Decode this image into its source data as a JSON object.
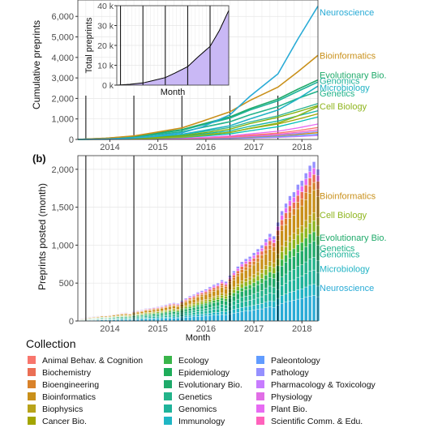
{
  "chart_data": [
    {
      "type": "line",
      "panel_label": "",
      "ylabel": "Cumulative preprints",
      "xlabel": "",
      "x_tick_labels": [
        "2014",
        "2015",
        "2016",
        "2017",
        "2018"
      ],
      "xlim": [
        "2013-11",
        "2018-11"
      ],
      "ylim": [
        0,
        6800
      ],
      "y_ticks": [
        0,
        1000,
        2000,
        3000,
        4000,
        5000,
        6000
      ],
      "y_tick_labels": [
        "0",
        "1,000",
        "2,000",
        "3,000",
        "4,000",
        "5,000",
        "6,000"
      ],
      "year_boundaries": [
        "2014-01",
        "2015-01",
        "2016-01",
        "2017-01",
        "2018-01"
      ],
      "grid": true,
      "series": [
        {
          "name": "Neuroscience",
          "color": "#29abd6",
          "x": [
            "2013-11",
            "2014-06",
            "2015-01",
            "2015-06",
            "2016-01",
            "2016-06",
            "2017-01",
            "2017-06",
            "2018-01",
            "2018-06",
            "2018-11"
          ],
          "y": [
            0,
            20,
            70,
            160,
            320,
            600,
            1200,
            2100,
            3200,
            4900,
            6500
          ]
        },
        {
          "name": "Bioinformatics",
          "color": "#c9901a",
          "x": [
            "2013-11",
            "2014-06",
            "2015-01",
            "2015-06",
            "2016-01",
            "2016-06",
            "2017-01",
            "2017-06",
            "2018-01",
            "2018-06",
            "2018-11"
          ],
          "y": [
            0,
            60,
            170,
            330,
            560,
            880,
            1350,
            1900,
            2550,
            3300,
            4100
          ]
        },
        {
          "name": "Evolutionary Bio.",
          "color": "#1faa6a",
          "x": [
            "2013-11",
            "2014-06",
            "2015-01",
            "2015-06",
            "2016-01",
            "2016-06",
            "2017-01",
            "2017-06",
            "2018-01",
            "2018-06",
            "2018-11"
          ],
          "y": [
            0,
            55,
            150,
            290,
            480,
            740,
            1100,
            1500,
            1970,
            2450,
            2900
          ]
        },
        {
          "name": "Genomics",
          "color": "#1fb39a",
          "x": [
            "2013-11",
            "2014-06",
            "2015-01",
            "2015-06",
            "2016-01",
            "2016-06",
            "2017-01",
            "2017-06",
            "2018-01",
            "2018-06",
            "2018-11"
          ],
          "y": [
            0,
            50,
            140,
            270,
            450,
            700,
            1040,
            1430,
            1880,
            2350,
            2800
          ]
        },
        {
          "name": "Microbiology",
          "color": "#21b3c4",
          "x": [
            "2013-11",
            "2014-06",
            "2015-01",
            "2015-06",
            "2016-01",
            "2016-06",
            "2017-01",
            "2017-06",
            "2018-01",
            "2018-06",
            "2018-11"
          ],
          "y": [
            0,
            25,
            70,
            140,
            250,
            420,
            670,
            1000,
            1430,
            1980,
            2600
          ]
        },
        {
          "name": "Genetics",
          "color": "#23b38a",
          "x": [
            "2013-11",
            "2014-06",
            "2015-01",
            "2015-06",
            "2016-01",
            "2016-06",
            "2017-01",
            "2017-06",
            "2018-01",
            "2018-06",
            "2018-11"
          ],
          "y": [
            0,
            40,
            110,
            220,
            370,
            580,
            860,
            1200,
            1600,
            2000,
            2350
          ]
        },
        {
          "name": "Cell Biology",
          "color": "#8fb51f",
          "x": [
            "2013-11",
            "2014-06",
            "2015-01",
            "2015-06",
            "2016-01",
            "2016-06",
            "2017-01",
            "2017-06",
            "2018-01",
            "2018-06",
            "2018-11"
          ],
          "y": [
            0,
            8,
            25,
            55,
            110,
            200,
            340,
            540,
            800,
            1150,
            1600
          ]
        },
        {
          "name": "",
          "color": "#7cae00",
          "x": [
            "2013-11",
            "2014-06",
            "2015-01",
            "2015-06",
            "2016-01",
            "2016-06",
            "2017-01",
            "2017-06",
            "2018-01",
            "2018-06",
            "2018-11"
          ],
          "y": [
            0,
            15,
            45,
            95,
            180,
            310,
            500,
            770,
            1080,
            1350,
            1650
          ]
        },
        {
          "name": "",
          "color": "#2bb390",
          "x": [
            "2013-11",
            "2014-06",
            "2015-01",
            "2015-06",
            "2016-01",
            "2016-06",
            "2017-01",
            "2017-06",
            "2018-01",
            "2018-06",
            "2018-11"
          ],
          "y": [
            0,
            20,
            60,
            120,
            220,
            370,
            580,
            850,
            1150,
            1450,
            1750
          ]
        },
        {
          "name": "",
          "color": "#13b6a8",
          "x": [
            "2013-11",
            "2014-06",
            "2015-01",
            "2015-06",
            "2016-01",
            "2016-06",
            "2017-01",
            "2017-06",
            "2018-01",
            "2018-06",
            "2018-11"
          ],
          "y": [
            0,
            10,
            35,
            80,
            150,
            260,
            420,
            640,
            900,
            1150,
            1400
          ]
        },
        {
          "name": "",
          "color": "#a3a500",
          "x": [
            "2013-11",
            "2014-06",
            "2015-01",
            "2015-06",
            "2016-01",
            "2016-06",
            "2017-01",
            "2017-06",
            "2018-01",
            "2018-06",
            "2018-11"
          ],
          "y": [
            0,
            12,
            35,
            70,
            130,
            220,
            350,
            530,
            750,
            990,
            1250
          ]
        },
        {
          "name": "",
          "color": "#00c0b8",
          "x": [
            "2013-11",
            "2014-06",
            "2015-01",
            "2015-06",
            "2016-01",
            "2016-06",
            "2017-01",
            "2017-06",
            "2018-01",
            "2018-06",
            "2018-11"
          ],
          "y": [
            0,
            6,
            20,
            45,
            90,
            160,
            270,
            420,
            620,
            850,
            1100
          ]
        },
        {
          "name": "",
          "color": "#e76bf3",
          "x": [
            "2013-11",
            "2014-06",
            "2015-01",
            "2015-06",
            "2016-01",
            "2016-06",
            "2017-01",
            "2017-06",
            "2018-01",
            "2018-06",
            "2018-11"
          ],
          "y": [
            0,
            4,
            12,
            28,
            55,
            100,
            170,
            270,
            400,
            560,
            750
          ]
        },
        {
          "name": "",
          "color": "#f8766d",
          "x": [
            "2013-11",
            "2014-06",
            "2015-01",
            "2015-06",
            "2016-01",
            "2016-06",
            "2017-01",
            "2017-06",
            "2018-01",
            "2018-06",
            "2018-11"
          ],
          "y": [
            0,
            3,
            10,
            22,
            45,
            80,
            135,
            210,
            310,
            430,
            580
          ]
        },
        {
          "name": "",
          "color": "#ff62bc",
          "x": [
            "2013-11",
            "2014-06",
            "2015-01",
            "2015-06",
            "2016-01",
            "2016-06",
            "2017-01",
            "2017-06",
            "2018-01",
            "2018-06",
            "2018-11"
          ],
          "y": [
            0,
            3,
            9,
            20,
            38,
            65,
            110,
            170,
            250,
            350,
            470
          ]
        },
        {
          "name": "",
          "color": "#9590ff",
          "x": [
            "2013-11",
            "2014-06",
            "2015-01",
            "2015-06",
            "2016-01",
            "2016-06",
            "2017-01",
            "2017-06",
            "2018-01",
            "2018-06",
            "2018-11"
          ],
          "y": [
            0,
            2,
            7,
            15,
            30,
            52,
            88,
            140,
            210,
            290,
            390
          ]
        },
        {
          "name": "",
          "color": "#d89000",
          "x": [
            "2013-11",
            "2014-06",
            "2015-01",
            "2015-06",
            "2016-01",
            "2016-06",
            "2017-01",
            "2017-06",
            "2018-01",
            "2018-06",
            "2018-11"
          ],
          "y": [
            0,
            2,
            6,
            13,
            25,
            45,
            75,
            120,
            180,
            250,
            330
          ]
        },
        {
          "name": "",
          "color": "#619cff",
          "x": [
            "2013-11",
            "2014-06",
            "2015-01",
            "2015-06",
            "2016-01",
            "2016-06",
            "2017-01",
            "2017-06",
            "2018-01",
            "2018-06",
            "2018-11"
          ],
          "y": [
            0,
            1,
            4,
            9,
            18,
            32,
            55,
            90,
            135,
            190,
            250
          ]
        },
        {
          "name": "",
          "color": "#c77cff",
          "x": [
            "2013-11",
            "2014-06",
            "2015-01",
            "2015-06",
            "2016-01",
            "2016-06",
            "2017-01",
            "2017-06",
            "2018-01",
            "2018-06",
            "2018-11"
          ],
          "y": [
            0,
            1,
            3,
            7,
            14,
            25,
            42,
            68,
            100,
            140,
            190
          ]
        }
      ],
      "labels": [
        {
          "text": "Neuroscience",
          "y": 6200,
          "color": "#29abd6"
        },
        {
          "text": "Bioinformatics",
          "y": 4100,
          "color": "#c9901a"
        },
        {
          "text": "Evolutionary Bio.",
          "y": 3150,
          "color": "#1faa6a"
        },
        {
          "text": "Genomics",
          "y": 2860,
          "color": "#1fb39a"
        },
        {
          "text": "Microbiology",
          "y": 2540,
          "color": "#21b3c4"
        },
        {
          "text": "Genetics",
          "y": 2250,
          "color": "#23b38a"
        },
        {
          "text": "Cell Biology",
          "y": 1620,
          "color": "#8fb51f"
        }
      ]
    },
    {
      "type": "area",
      "role": "inset",
      "ylabel": "Total preprints",
      "xlabel": "Month",
      "ylim": [
        0,
        40000
      ],
      "y_ticks": [
        0,
        10000,
        20000,
        30000,
        40000
      ],
      "y_tick_labels": [
        "0 k",
        "10 k",
        "20 k",
        "30 k",
        "40 k"
      ],
      "xlim": [
        "2013-11",
        "2018-11"
      ],
      "year_boundaries": [
        "2014-01",
        "2015-01",
        "2016-01",
        "2017-01",
        "2018-01"
      ],
      "fill_color": "#c9b8f5",
      "x": [
        "2013-11",
        "2014-06",
        "2015-01",
        "2015-06",
        "2016-01",
        "2016-06",
        "2017-01",
        "2017-06",
        "2018-01",
        "2018-06",
        "2018-11"
      ],
      "y": [
        0,
        400,
        1100,
        2200,
        3800,
        6000,
        9300,
        13700,
        19500,
        27500,
        37600
      ]
    },
    {
      "type": "bar",
      "stacked": true,
      "panel_label": "(b)",
      "ylabel": "Preprints posted (month)",
      "xlabel": "Month",
      "x_tick_labels": [
        "2014",
        "2015",
        "2016",
        "2017",
        "2018"
      ],
      "xlim": [
        "2013-11",
        "2018-11"
      ],
      "ylim": [
        0,
        2180
      ],
      "y_ticks": [
        0,
        500,
        1000,
        1500,
        2000
      ],
      "y_tick_labels": [
        "0",
        "500",
        "1,000",
        "1,500",
        "2,000"
      ],
      "year_boundaries": [
        "2014-01",
        "2015-01",
        "2016-01",
        "2017-01",
        "2018-01"
      ],
      "grid": true,
      "months": [
        "2013-11",
        "2013-12",
        "2014-01",
        "2014-02",
        "2014-03",
        "2014-04",
        "2014-05",
        "2014-06",
        "2014-07",
        "2014-08",
        "2014-09",
        "2014-10",
        "2014-11",
        "2014-12",
        "2015-01",
        "2015-02",
        "2015-03",
        "2015-04",
        "2015-05",
        "2015-06",
        "2015-07",
        "2015-08",
        "2015-09",
        "2015-10",
        "2015-11",
        "2015-12",
        "2016-01",
        "2016-02",
        "2016-03",
        "2016-04",
        "2016-05",
        "2016-06",
        "2016-07",
        "2016-08",
        "2016-09",
        "2016-10",
        "2016-11",
        "2016-12",
        "2017-01",
        "2017-02",
        "2017-03",
        "2017-04",
        "2017-05",
        "2017-06",
        "2017-07",
        "2017-08",
        "2017-09",
        "2017-10",
        "2017-11",
        "2017-12",
        "2018-01",
        "2018-02",
        "2018-03",
        "2018-04",
        "2018-05",
        "2018-06",
        "2018-07",
        "2018-08",
        "2018-09",
        "2018-10",
        "2018-11"
      ],
      "totals": [
        10,
        35,
        45,
        55,
        60,
        70,
        80,
        75,
        85,
        95,
        100,
        110,
        115,
        105,
        130,
        140,
        150,
        165,
        170,
        180,
        190,
        200,
        215,
        230,
        240,
        230,
        270,
        300,
        330,
        350,
        380,
        400,
        420,
        450,
        480,
        500,
        540,
        520,
        600,
        660,
        720,
        780,
        820,
        850,
        900,
        950,
        1000,
        1080,
        1150,
        1120,
        1300,
        1450,
        1550,
        1650,
        1700,
        1800,
        1850,
        1950,
        2050,
        2100,
        2000
      ],
      "series": [
        {
          "name": "Neuroscience",
          "color": "#29abd6",
          "share": 0.16
        },
        {
          "name": "Microbiology",
          "color": "#21b3c4",
          "share": 0.07
        },
        {
          "name": "Genomics",
          "color": "#1fb39a",
          "share": 0.09
        },
        {
          "name": "Genetics",
          "color": "#23b38a",
          "share": 0.08
        },
        {
          "name": "Evolutionary Bio.",
          "color": "#1faa6a",
          "share": 0.1
        },
        {
          "name": "Ecology",
          "color": "#39b54a",
          "share": 0.06
        },
        {
          "name": "Cell Biology",
          "color": "#8fb51f",
          "share": 0.07
        },
        {
          "name": "Biophysics",
          "color": "#b8a31a",
          "share": 0.05
        },
        {
          "name": "Bioinformatics",
          "color": "#c9901a",
          "share": 0.14
        },
        {
          "name": "Bioengineering",
          "color": "#d9822b",
          "share": 0.05
        },
        {
          "name": "Biochemistry",
          "color": "#ea6f55",
          "share": 0.05
        },
        {
          "name": "Plant Bio.",
          "color": "#e76bf3",
          "share": 0.04
        },
        {
          "name": "Pathology",
          "color": "#9590ff",
          "share": 0.04
        }
      ],
      "labels": [
        {
          "text": "Bioinformatics",
          "y": 1650,
          "color": "#c9901a"
        },
        {
          "text": "Cell Biology",
          "y": 1400,
          "color": "#8fb51f"
        },
        {
          "text": "Evolutionary Bio.",
          "y": 1100,
          "color": "#1faa6a"
        },
        {
          "text": "Genetics",
          "y": 960,
          "color": "#23b38a"
        },
        {
          "text": "Genomics",
          "y": 880,
          "color": "#1fb39a"
        },
        {
          "text": "Microbiology",
          "y": 690,
          "color": "#21b3c4"
        },
        {
          "text": "Neuroscience",
          "y": 440,
          "color": "#29abd6"
        }
      ]
    }
  ],
  "legend": {
    "title": "Collection",
    "items": [
      {
        "label": "Animal Behav. & Cognition",
        "color": "#f8766d"
      },
      {
        "label": "Biochemistry",
        "color": "#ea6f55"
      },
      {
        "label": "Bioengineering",
        "color": "#d9822b"
      },
      {
        "label": "Bioinformatics",
        "color": "#c9901a"
      },
      {
        "label": "Biophysics",
        "color": "#b8a31a"
      },
      {
        "label": "Cancer Bio.",
        "color": "#a3a500"
      },
      {
        "label": "Ecology",
        "color": "#39b54a"
      },
      {
        "label": "Epidemiology",
        "color": "#1fad5a"
      },
      {
        "label": "Evolutionary Bio.",
        "color": "#1faa6a"
      },
      {
        "label": "Genetics",
        "color": "#23b38a"
      },
      {
        "label": "Genomics",
        "color": "#1fb39a"
      },
      {
        "label": "Immunology",
        "color": "#1fb6c4"
      },
      {
        "label": "Paleontology",
        "color": "#619cff"
      },
      {
        "label": "Pathology",
        "color": "#9590ff"
      },
      {
        "label": "Pharmacology & Toxicology",
        "color": "#c77cff"
      },
      {
        "label": "Physiology",
        "color": "#e16ee6"
      },
      {
        "label": "Plant Bio.",
        "color": "#e76bf3"
      },
      {
        "label": "Scientific Comm. & Edu.",
        "color": "#ff62bc"
      }
    ]
  }
}
